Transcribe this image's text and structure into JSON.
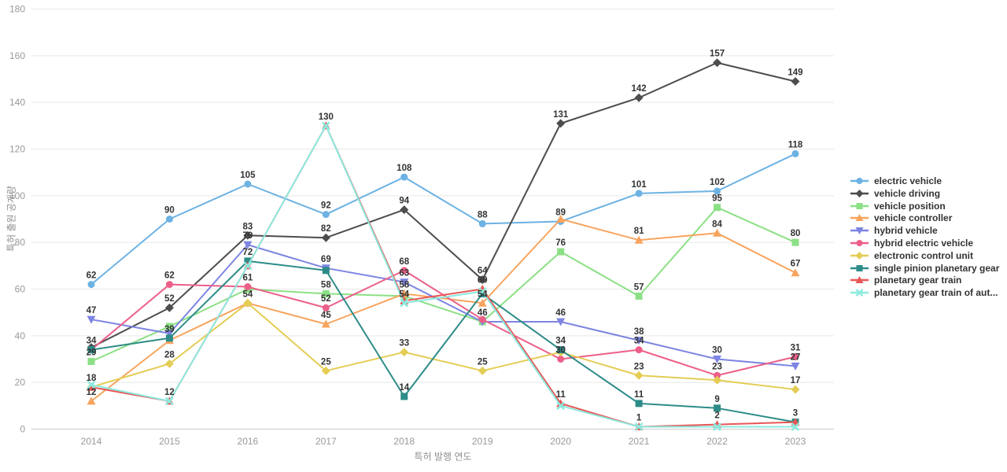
{
  "chart_data": {
    "type": "line",
    "x": [
      "2014",
      "2015",
      "2016",
      "2017",
      "2018",
      "2019",
      "2020",
      "2021",
      "2022",
      "2023"
    ],
    "xlabel": "특허 발행 연도",
    "ylabel": "특허 출원 공개량",
    "ylim": [
      0,
      180
    ],
    "ytick_step": 20,
    "grid": true,
    "legend_position": "right",
    "series": [
      {
        "name": "electric vehicle",
        "color": "#6cb2e3",
        "symbol": "circle",
        "values": [
          62,
          90,
          105,
          92,
          108,
          88,
          89,
          101,
          102,
          118
        ],
        "labeled": [
          true,
          true,
          true,
          true,
          true,
          true,
          true,
          true,
          true,
          true
        ]
      },
      {
        "name": "vehicle driving",
        "color": "#4d4d4d",
        "symbol": "diamond",
        "values": [
          35,
          52,
          83,
          82,
          94,
          64,
          131,
          142,
          157,
          149
        ],
        "labeled": [
          false,
          true,
          true,
          true,
          true,
          true,
          true,
          true,
          true,
          true
        ]
      },
      {
        "name": "vehicle position",
        "color": "#8ce085",
        "symbol": "square",
        "values": [
          29,
          44,
          60,
          58,
          57,
          46,
          76,
          57,
          95,
          80
        ],
        "labeled": [
          true,
          false,
          false,
          true,
          false,
          false,
          true,
          true,
          true,
          true
        ]
      },
      {
        "name": "vehicle controller",
        "color": "#f7a45e",
        "symbol": "triangle",
        "values": [
          12,
          38,
          54,
          45,
          58,
          54,
          90,
          81,
          84,
          67
        ],
        "labeled": [
          true,
          false,
          false,
          true,
          true,
          true,
          false,
          true,
          true,
          true
        ]
      },
      {
        "name": "hybrid vehicle",
        "color": "#7d84e2",
        "symbol": "triangle-down",
        "values": [
          47,
          41,
          79,
          69,
          63,
          46,
          46,
          38,
          30,
          27
        ],
        "labeled": [
          true,
          false,
          true,
          true,
          true,
          true,
          true,
          true,
          true,
          true
        ]
      },
      {
        "name": "hybrid electric vehicle",
        "color": "#ec5f88",
        "symbol": "circle",
        "values": [
          34,
          62,
          61,
          52,
          68,
          47,
          30,
          34,
          23,
          31
        ],
        "labeled": [
          true,
          true,
          true,
          true,
          true,
          false,
          true,
          true,
          true,
          true
        ]
      },
      {
        "name": "electronic control unit",
        "color": "#e4cd55",
        "symbol": "diamond",
        "values": [
          18,
          28,
          54,
          25,
          33,
          25,
          33,
          23,
          21,
          17
        ],
        "labeled": [
          true,
          true,
          true,
          true,
          true,
          true,
          false,
          true,
          false,
          true
        ]
      },
      {
        "name": "single pinion planetary gear",
        "color": "#2d8c88",
        "symbol": "square",
        "values": [
          34,
          39,
          72,
          68,
          14,
          58,
          34,
          11,
          9,
          3
        ],
        "labeled": [
          false,
          true,
          true,
          false,
          true,
          false,
          true,
          true,
          true,
          true
        ]
      },
      {
        "name": "planetary gear train",
        "color": "#e85757",
        "symbol": "triangle",
        "values": [
          18,
          12,
          70,
          130,
          55,
          60,
          11,
          1,
          2,
          3
        ],
        "labeled": [
          false,
          true,
          false,
          true,
          false,
          true,
          true,
          false,
          true,
          false
        ]
      },
      {
        "name": "planetary gear train of aut...",
        "color": "#8ceade",
        "symbol": "x",
        "values": [
          19,
          12,
          70,
          130,
          54,
          59,
          10,
          1,
          1,
          1
        ],
        "labeled": [
          false,
          false,
          false,
          false,
          true,
          false,
          false,
          true,
          false,
          false
        ]
      }
    ]
  }
}
